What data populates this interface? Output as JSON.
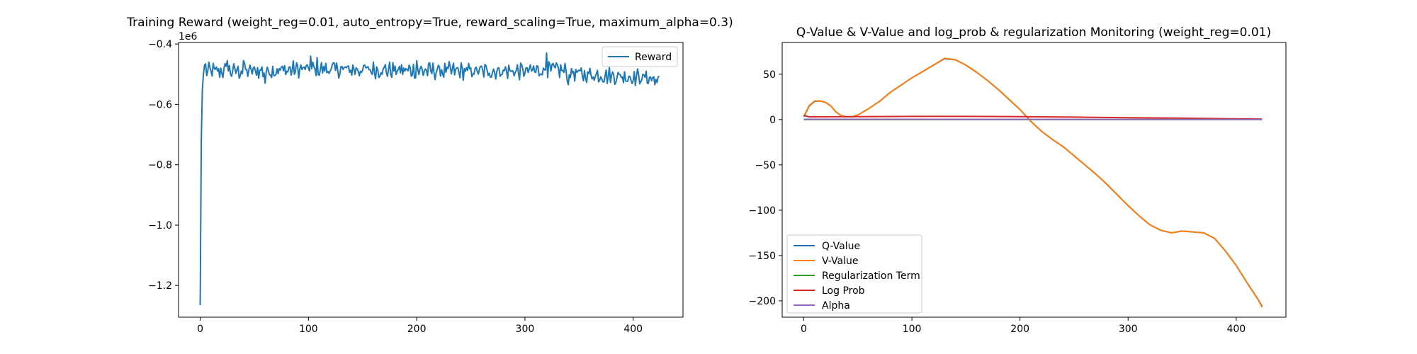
{
  "figure": {
    "background": "#ffffff"
  },
  "chart_data": [
    {
      "id": "reward",
      "type": "line",
      "title": "Training Reward (weight_reg=0.01, auto_entropy=True, reward_scaling=True, maximum_alpha=0.3)",
      "xlabel": "",
      "ylabel": "",
      "xlim": [
        -20,
        446
      ],
      "ylim": [
        -1.305,
        -0.395
      ],
      "y_offset_label": "1e6",
      "xticks": [
        0,
        100,
        200,
        300,
        400
      ],
      "yticks": [
        -1.2,
        -1.0,
        -0.8,
        -0.6,
        -0.4
      ],
      "ytick_labels": [
        "−1.2",
        "−1.0",
        "−0.8",
        "−0.6",
        "−0.4"
      ],
      "legend": {
        "position": "top-right",
        "entries": [
          {
            "label": "Reward",
            "color": "#1f77b4"
          }
        ]
      },
      "grid": false,
      "series": [
        {
          "name": "Reward",
          "color": "#1f77b4",
          "x_start": 0,
          "x_step": 1,
          "base_points": [
            [
              0,
              -1.265
            ],
            [
              1,
              -0.72
            ],
            [
              2,
              -0.55
            ],
            [
              3,
              -0.5
            ],
            [
              4,
              -0.47
            ],
            [
              6,
              -0.49
            ],
            [
              50,
              -0.49
            ],
            [
              100,
              -0.483
            ],
            [
              150,
              -0.485
            ],
            [
              200,
              -0.488
            ],
            [
              250,
              -0.49
            ],
            [
              300,
              -0.49
            ],
            [
              330,
              -0.485
            ],
            [
              350,
              -0.5
            ],
            [
              380,
              -0.505
            ],
            [
              424,
              -0.515
            ]
          ],
          "noise_amplitude": 0.025,
          "spikes": [
            [
              25,
              -0.455
            ],
            [
              40,
              -0.455
            ],
            [
              60,
              -0.53
            ],
            [
              102,
              -0.44
            ],
            [
              108,
              -0.445
            ],
            [
              200,
              -0.455
            ],
            [
              320,
              -0.43
            ],
            [
              340,
              -0.535
            ],
            [
              420,
              -0.535
            ]
          ],
          "x_end": 424
        }
      ]
    },
    {
      "id": "monitoring",
      "type": "line",
      "title": "Q-Value & V-Value and log_prob & regularization Monitoring (weight_reg=0.01)",
      "xlabel": "",
      "ylabel": "",
      "xlim": [
        -20,
        446
      ],
      "ylim": [
        -218,
        85
      ],
      "xticks": [
        0,
        100,
        200,
        300,
        400
      ],
      "yticks": [
        -200,
        -150,
        -100,
        -50,
        0,
        50
      ],
      "ytick_labels": [
        "−200",
        "−150",
        "−100",
        "−50",
        "0",
        "50"
      ],
      "legend": {
        "position": "lower-left"
      },
      "grid": false,
      "series": [
        {
          "name": "Q-Value",
          "color": "#1f77b4",
          "points": [
            [
              0,
              3
            ],
            [
              5,
              15
            ],
            [
              10,
              20
            ],
            [
              15,
              20.5
            ],
            [
              20,
              19
            ],
            [
              25,
              15
            ],
            [
              30,
              8
            ],
            [
              35,
              4
            ],
            [
              40,
              3
            ],
            [
              45,
              3
            ],
            [
              50,
              5
            ],
            [
              60,
              12
            ],
            [
              70,
              20
            ],
            [
              80,
              30
            ],
            [
              90,
              38
            ],
            [
              100,
              46
            ],
            [
              110,
              53
            ],
            [
              120,
              60
            ],
            [
              130,
              67
            ],
            [
              140,
              66
            ],
            [
              150,
              60
            ],
            [
              160,
              52
            ],
            [
              170,
              43
            ],
            [
              180,
              33
            ],
            [
              190,
              22
            ],
            [
              200,
              11
            ],
            [
              210,
              -2
            ],
            [
              220,
              -13
            ],
            [
              230,
              -22
            ],
            [
              240,
              -30
            ],
            [
              250,
              -40
            ],
            [
              260,
              -50
            ],
            [
              270,
              -60
            ],
            [
              280,
              -71
            ],
            [
              290,
              -83
            ],
            [
              300,
              -95
            ],
            [
              310,
              -106
            ],
            [
              320,
              -116
            ],
            [
              330,
              -122
            ],
            [
              340,
              -125
            ],
            [
              350,
              -123
            ],
            [
              360,
              -124
            ],
            [
              370,
              -125
            ],
            [
              380,
              -131
            ],
            [
              390,
              -145
            ],
            [
              400,
              -161
            ],
            [
              410,
              -180
            ],
            [
              420,
              -198
            ],
            [
              424,
              -206
            ]
          ]
        },
        {
          "name": "V-Value",
          "color": "#ff7f0e",
          "points": [
            [
              0,
              3.5
            ],
            [
              5,
              15.5
            ],
            [
              10,
              20.5
            ],
            [
              15,
              20.5
            ],
            [
              20,
              19
            ],
            [
              25,
              15
            ],
            [
              30,
              8
            ],
            [
              35,
              4
            ],
            [
              40,
              3
            ],
            [
              45,
              3
            ],
            [
              50,
              5
            ],
            [
              60,
              12
            ],
            [
              70,
              20
            ],
            [
              80,
              30
            ],
            [
              90,
              38
            ],
            [
              100,
              46
            ],
            [
              110,
              53
            ],
            [
              120,
              60
            ],
            [
              130,
              67.5
            ],
            [
              140,
              66
            ],
            [
              150,
              60
            ],
            [
              160,
              52
            ],
            [
              170,
              43
            ],
            [
              180,
              33
            ],
            [
              190,
              22
            ],
            [
              200,
              11
            ],
            [
              210,
              -2
            ],
            [
              220,
              -13
            ],
            [
              230,
              -22
            ],
            [
              240,
              -30
            ],
            [
              250,
              -40
            ],
            [
              260,
              -50
            ],
            [
              270,
              -60
            ],
            [
              280,
              -71
            ],
            [
              290,
              -83
            ],
            [
              300,
              -95
            ],
            [
              310,
              -106
            ],
            [
              320,
              -116
            ],
            [
              330,
              -122
            ],
            [
              340,
              -125
            ],
            [
              350,
              -123
            ],
            [
              360,
              -124
            ],
            [
              370,
              -125
            ],
            [
              380,
              -131
            ],
            [
              390,
              -145
            ],
            [
              400,
              -161
            ],
            [
              410,
              -180
            ],
            [
              420,
              -198
            ],
            [
              424,
              -207
            ]
          ]
        },
        {
          "name": "Regularization Term",
          "color": "#2ca02c",
          "points": [
            [
              0,
              0
            ],
            [
              424,
              0
            ]
          ]
        },
        {
          "name": "Log Prob",
          "color": "#d62728",
          "points": [
            [
              0,
              4.5
            ],
            [
              5,
              3
            ],
            [
              50,
              3.2
            ],
            [
              100,
              3.5
            ],
            [
              150,
              3.5
            ],
            [
              200,
              3.2
            ],
            [
              250,
              2.7
            ],
            [
              300,
              2
            ],
            [
              350,
              1.5
            ],
            [
              400,
              0.8
            ],
            [
              424,
              0.5
            ]
          ]
        },
        {
          "name": "Alpha",
          "color": "#9467bd",
          "points": [
            [
              0,
              0.3
            ],
            [
              100,
              0.25
            ],
            [
              200,
              0.2
            ],
            [
              300,
              0.15
            ],
            [
              424,
              0.1
            ]
          ]
        }
      ]
    }
  ]
}
